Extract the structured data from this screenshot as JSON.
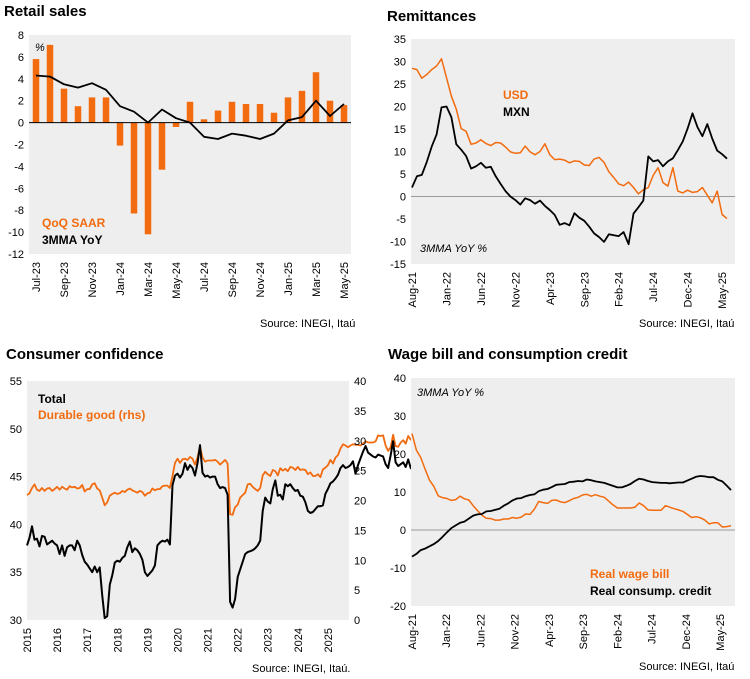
{
  "colors": {
    "orange": "#F26B0F",
    "black": "#000000",
    "plot_bg": "#EEEEEE"
  },
  "chart_data": [
    {
      "id": "retail",
      "type": "bar+line",
      "title": "Retail sales",
      "source": "Source: INEGI, Itaú",
      "unit_label": "%",
      "ylim": [
        -12,
        8
      ],
      "yticks": [
        "8",
        "6",
        "4",
        "2",
        "0",
        "-2",
        "-4",
        "-6",
        "-8",
        "-10",
        "-12"
      ],
      "xticks": [
        "Jul-23",
        "Sep-23",
        "Nov-23",
        "Jan-24",
        "Mar-24",
        "May-24",
        "Jul-24",
        "Sep-24",
        "Nov-24",
        "Jan-25",
        "Mar-25",
        "May-25"
      ],
      "categories": [
        "Jul-23",
        "Aug-23",
        "Sep-23",
        "Oct-23",
        "Nov-23",
        "Dec-23",
        "Jan-24",
        "Feb-24",
        "Mar-24",
        "Apr-24",
        "May-24",
        "Jun-24",
        "Jul-24",
        "Aug-24",
        "Sep-24",
        "Oct-24",
        "Nov-24",
        "Dec-24",
        "Jan-25",
        "Feb-25",
        "Mar-25",
        "Apr-25",
        "May-25"
      ],
      "series": [
        {
          "name": "QoQ SAAR",
          "kind": "bar",
          "values": [
            5.8,
            7.1,
            3.1,
            1.5,
            2.3,
            2.3,
            -2.1,
            -8.3,
            -10.2,
            -4.3,
            -0.4,
            1.9,
            0.3,
            1.1,
            1.9,
            1.7,
            1.7,
            0.9,
            2.3,
            2.9,
            4.6,
            2.0,
            1.6
          ]
        },
        {
          "name": "3MMA YoY",
          "kind": "line",
          "values": [
            4.3,
            4.2,
            3.5,
            3.2,
            3.6,
            3.0,
            1.5,
            1.0,
            0.0,
            1.2,
            0.4,
            0.0,
            -1.3,
            -1.5,
            -1.0,
            -1.2,
            -1.5,
            -1.0,
            0.2,
            0.5,
            2.0,
            0.6,
            1.7
          ]
        }
      ]
    },
    {
      "id": "remit",
      "type": "line",
      "title": "Remittances",
      "source": "Source: INEGI, Itaú",
      "note": "3MMA YoY %",
      "ylim": [
        -15,
        35
      ],
      "yticks": [
        "35",
        "30",
        "25",
        "20",
        "15",
        "10",
        "5",
        "0",
        "-5",
        "-10",
        "-15"
      ],
      "xticks": [
        "Aug-21",
        "Jan-22",
        "Jun-22",
        "Nov-22",
        "Apr-23",
        "Sep-23",
        "Feb-24",
        "Jul-24",
        "Dec-24",
        "May-25"
      ],
      "series": [
        {
          "name": "USD",
          "values": [
            28.5,
            28.2,
            26.3,
            27.1,
            28.2,
            29.0,
            30.6,
            26.4,
            22.3,
            19.4,
            15.1,
            14.5,
            11.6,
            11.9,
            12.6,
            11.8,
            11.3,
            12.0,
            11.9,
            11.0,
            9.9,
            9.6,
            9.7,
            11.2,
            9.9,
            9.3,
            10.0,
            11.7,
            9.3,
            8.2,
            8.3,
            8.1,
            7.5,
            7.9,
            7.8,
            7.0,
            6.9,
            8.3,
            8.7,
            7.6,
            5.5,
            4.2,
            2.8,
            2.4,
            3.2,
            2.0,
            0.6,
            1.5,
            2.0,
            4.7,
            6.4,
            3.1,
            2.3,
            6.4,
            1.2,
            0.8,
            1.4,
            0.9,
            1.1,
            2.0,
            0.3,
            -1.4,
            1.2,
            -4.0,
            -4.9
          ]
        },
        {
          "name": "MXN",
          "values": [
            2.0,
            4.5,
            4.8,
            7.7,
            11.1,
            13.8,
            19.8,
            20.0,
            17.6,
            11.6,
            10.4,
            9.0,
            6.2,
            6.7,
            7.5,
            6.4,
            6.6,
            4.5,
            2.8,
            1.2,
            0.0,
            -0.8,
            -1.8,
            -0.4,
            -0.8,
            -1.6,
            -0.9,
            -2.1,
            -3.0,
            -4.1,
            -6.3,
            -5.9,
            -6.4,
            -3.7,
            -4.7,
            -5.4,
            -6.7,
            -8.2,
            -9.0,
            -10.1,
            -8.4,
            -8.6,
            -8.8,
            -7.9,
            -10.6,
            -3.8,
            -2.4,
            -0.9,
            8.9,
            7.8,
            8.1,
            6.7,
            7.8,
            8.5,
            10.3,
            12.2,
            15.1,
            18.5,
            15.4,
            13.4,
            16.1,
            12.9,
            10.2,
            9.4,
            8.4
          ]
        }
      ]
    },
    {
      "id": "confidence",
      "type": "line",
      "title": "Consumer confidence",
      "source": "Source: INEGI, Itaú.",
      "ylim": [
        30,
        55
      ],
      "ylim_right": [
        0,
        40
      ],
      "yticks": [
        "55",
        "50",
        "45",
        "40",
        "35",
        "30"
      ],
      "yticks_right": [
        "40",
        "35",
        "30",
        "25",
        "20",
        "15",
        "10",
        "5",
        "0"
      ],
      "xticks": [
        "2015",
        "2016",
        "2017",
        "2018",
        "2019",
        "2020",
        "2021",
        "2022",
        "2023",
        "2024",
        "2025"
      ],
      "x_start_year": 2015,
      "series": [
        {
          "name": "Total",
          "axis": "left",
          "values": [
            37.8,
            38.6,
            39.8,
            38.4,
            38.5,
            37.7,
            38.8,
            38.7,
            37.9,
            38.1,
            38.3,
            38.0,
            37.8,
            36.9,
            37.8,
            36.7,
            37.6,
            37.8,
            37.8,
            37.3,
            38.3,
            37.8,
            36.8,
            36.1,
            35.8,
            35.4,
            35.0,
            35.6,
            35.0,
            35.5,
            32.6,
            30.2,
            30.4,
            33.7,
            34.7,
            36.0,
            36.2,
            36.1,
            36.5,
            36.7,
            37.6,
            38.2,
            37.1,
            37.5,
            37.3,
            36.9,
            36.3,
            35.0,
            34.6,
            34.9,
            35.2,
            35.7,
            37.8,
            38.1,
            38.3,
            38.2,
            38.4,
            37.9,
            44.1,
            45.1,
            45.3,
            44.9,
            45.3,
            46.4,
            45.7,
            46.2,
            45.9,
            45.1,
            46.4,
            48.3,
            45.4,
            45.0,
            45.1,
            44.9,
            45.0,
            45.0,
            44.2,
            43.8,
            43.9,
            43.8,
            43.1,
            31.9,
            31.3,
            32.2,
            34.5,
            35.3,
            36.1,
            36.9,
            37.1,
            37.2,
            37.3,
            37.5,
            37.8,
            38.3,
            41.4,
            42.8,
            42.4,
            42.2,
            43.7,
            44.6,
            43.0,
            43.1,
            42.6,
            44.2,
            44.0,
            44.2,
            43.8,
            43.5,
            43.6,
            43.0,
            42.9,
            42.3,
            41.4,
            41.2,
            41.3,
            41.6,
            41.9,
            41.9,
            42.0,
            43.2,
            43.7,
            44.3,
            44.5,
            44.8,
            45.2,
            45.9,
            46.2,
            45.9,
            46.0,
            46.2,
            46.6,
            45.3,
            46.2,
            46.9,
            47.6,
            48.2,
            47.5,
            47.3,
            47.1,
            47.0,
            47.3,
            47.2,
            47.1,
            46.3,
            45.9,
            47.2,
            48.7,
            46.5,
            46.1,
            46.3,
            46.5,
            46.0,
            46.8,
            45.9,
            45.7,
            45.0
          ]
        },
        {
          "name": "Durable good (rhs)",
          "axis": "right",
          "values": [
            20.9,
            21.2,
            22.1,
            22.7,
            21.8,
            21.6,
            22.1,
            21.6,
            22.0,
            22.1,
            21.6,
            21.9,
            22.3,
            21.8,
            22.3,
            22.0,
            21.8,
            22.4,
            22.2,
            22.3,
            22.0,
            22.1,
            22.6,
            21.5,
            21.9,
            21.9,
            22.7,
            22.9,
            22.0,
            21.7,
            20.5,
            19.2,
            19.7,
            20.8,
            21.1,
            21.3,
            21.1,
            21.2,
            21.6,
            21.4,
            21.8,
            22.0,
            21.7,
            21.5,
            21.3,
            21.6,
            21.4,
            20.8,
            21.2,
            21.3,
            22.0,
            21.7,
            21.9,
            21.9,
            22.4,
            22.5,
            22.5,
            22.1,
            24.1,
            26.3,
            27.0,
            26.3,
            26.9,
            27.0,
            26.8,
            27.3,
            27.0,
            26.0,
            27.2,
            29.0,
            27.2,
            26.5,
            26.7,
            26.7,
            26.7,
            26.8,
            26.5,
            26.0,
            26.4,
            26.8,
            26.2,
            17.7,
            17.6,
            18.9,
            19.3,
            20.5,
            20.9,
            21.3,
            22.7,
            22.8,
            22.3,
            21.9,
            21.6,
            22.1,
            24.2,
            24.8,
            24.4,
            24.1,
            25.1,
            24.9,
            24.2,
            25.4,
            25.0,
            25.3,
            24.9,
            25.6,
            25.5,
            25.1,
            25.6,
            25.1,
            25.2,
            25.1,
            24.4,
            24.7,
            24.1,
            24.1,
            24.4,
            23.9,
            25.2,
            25.5,
            25.9,
            26.8,
            26.2,
            27.2,
            27.6,
            28.7,
            29.4,
            29.2,
            28.9,
            29.2,
            29.4,
            29.3,
            29.3,
            29.2,
            29.5,
            29.9,
            29.7,
            29.7,
            29.7,
            29.9,
            30.9,
            30.8,
            30.9,
            29.2,
            28.3,
            28.9,
            31.0,
            29.1,
            29.0,
            29.7,
            30.1,
            29.5,
            30.8,
            30.2,
            29.9,
            29.9
          ]
        }
      ]
    },
    {
      "id": "wage",
      "type": "line",
      "title": "Wage bill and consumption credit",
      "source": "Source: INEGI, Itaú",
      "note": "3MMA YoY %",
      "ylim": [
        -20,
        40
      ],
      "yticks": [
        "40",
        "30",
        "20",
        "10",
        "0",
        "-10",
        "-20"
      ],
      "xticks": [
        "Aug-21",
        "Jan-22",
        "Jun-22",
        "Nov-22",
        "Apr-23",
        "Sep-23",
        "Feb-24",
        "Jul-24",
        "Dec-24",
        "May-25"
      ],
      "series": [
        {
          "name": "Real wage bill",
          "values": [
            25.4,
            21.0,
            19.1,
            16.0,
            13.1,
            11.5,
            9.0,
            8.5,
            8.3,
            7.8,
            8.0,
            8.9,
            8.2,
            7.9,
            6.4,
            5.1,
            3.9,
            3.1,
            3.0,
            2.6,
            2.6,
            2.9,
            2.9,
            3.3,
            3.1,
            3.4,
            4.2,
            4.1,
            5.5,
            7.5,
            7.2,
            7.0,
            7.8,
            7.9,
            7.4,
            7.2,
            7.7,
            8.3,
            8.6,
            9.2,
            9.4,
            8.9,
            9.3,
            8.9,
            8.6,
            7.6,
            6.6,
            5.8,
            5.8,
            5.8,
            5.8,
            6.0,
            7.1,
            6.4,
            5.3,
            5.2,
            5.2,
            5.2,
            6.4,
            6.0,
            5.6,
            5.3,
            4.9,
            4.1,
            3.3,
            3.5,
            3.2,
            2.6,
            1.6,
            1.9,
            1.9,
            0.8,
            0.9,
            1.1
          ]
        },
        {
          "name": "Real consump. credit",
          "values": [
            -7.0,
            -6.3,
            -5.3,
            -4.9,
            -4.3,
            -3.7,
            -2.9,
            -1.8,
            -0.6,
            0.5,
            1.2,
            1.9,
            2.2,
            3.0,
            3.8,
            4.1,
            4.2,
            4.9,
            5.0,
            5.3,
            5.6,
            6.4,
            7.0,
            7.8,
            8.3,
            8.4,
            8.9,
            9.2,
            9.4,
            10.2,
            10.6,
            10.8,
            11.3,
            11.9,
            12.0,
            12.1,
            12.6,
            12.7,
            12.9,
            12.8,
            13.3,
            13.1,
            12.8,
            12.6,
            12.4,
            12.0,
            11.6,
            11.2,
            11.2,
            11.6,
            12.1,
            12.9,
            13.5,
            13.3,
            12.9,
            12.6,
            12.5,
            12.4,
            12.4,
            12.3,
            12.4,
            12.5,
            12.5,
            13.0,
            13.5,
            14.0,
            14.2,
            14.1,
            13.9,
            13.9,
            13.2,
            12.8,
            11.7,
            10.5
          ]
        }
      ]
    }
  ]
}
